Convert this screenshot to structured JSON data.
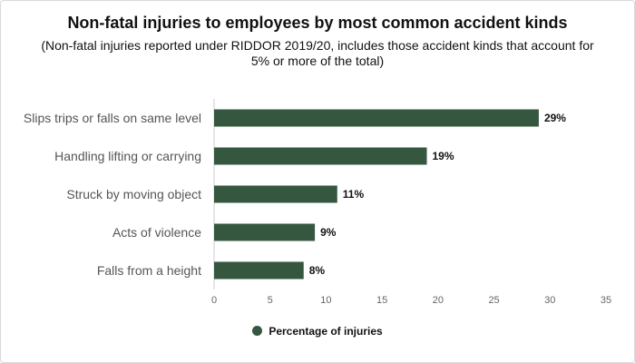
{
  "chart_data": {
    "type": "bar",
    "orientation": "horizontal",
    "title": "Non-fatal injuries to employees by most common accident kinds",
    "subtitle": "(Non-fatal injuries reported under RIDDOR 2019/20, includes those accident kinds that account for 5% or more of the total)",
    "categories": [
      "Slips trips or falls on same level",
      "Handling lifting or carrying",
      "Struck by moving object",
      "Acts of violence",
      "Falls from a height"
    ],
    "series": [
      {
        "name": "Percentage of injuries",
        "values": [
          29,
          19,
          11,
          9,
          8
        ],
        "color": "#36573f"
      }
    ],
    "data_labels": [
      "29%",
      "19%",
      "11%",
      "9%",
      "8%"
    ],
    "xlim": [
      0,
      35
    ],
    "xticks": [
      0,
      5,
      10,
      15,
      20,
      25,
      30,
      35
    ],
    "grid": false,
    "legend_position": "bottom"
  }
}
